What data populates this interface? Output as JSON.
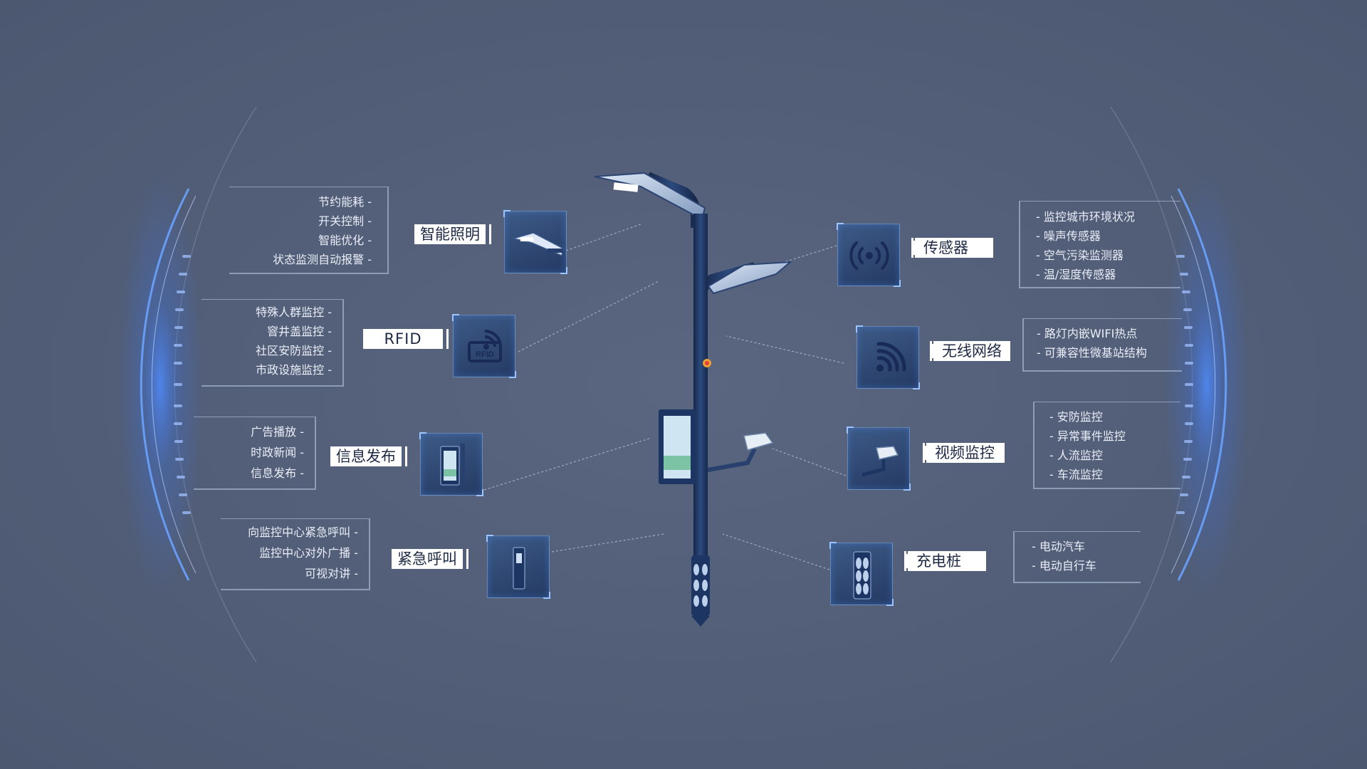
{
  "modules": {
    "lighting": {
      "label": "智能照明",
      "items": [
        "节约能耗",
        "开关控制",
        "智能优化",
        "状态监测自动报警"
      ]
    },
    "rfid": {
      "label": "RFID",
      "items": [
        "特殊人群监控",
        "窨井盖监控",
        "社区安防监控",
        "市政设施监控"
      ]
    },
    "info": {
      "label": "信息发布",
      "items": [
        "广告播放",
        "时政新闻",
        "信息发布"
      ]
    },
    "emergency": {
      "label": "紧急呼叫",
      "items": [
        "向监控中心紧急呼叫",
        "监控中心对外广播",
        "可视对讲"
      ]
    },
    "sensor": {
      "label": "传感器",
      "items": [
        "监控城市环境状况",
        "噪声传感器",
        "空气污染监测器",
        "温/湿度传感器"
      ]
    },
    "wifi": {
      "label": "无线网络",
      "items": [
        "路灯内嵌WIFI热点",
        "可兼容性微基站结构"
      ]
    },
    "video": {
      "label": "视频监控",
      "items": [
        "安防监控",
        "异常事件监控",
        "人流监控",
        "车流监控"
      ]
    },
    "charging": {
      "label": "充电桩",
      "items": [
        "电动汽车",
        "电动自行车"
      ]
    }
  },
  "icons": {
    "lighting": "street-lamp-head",
    "rfid": "rfid-tag",
    "info": "display-screen",
    "emergency": "call-pillar",
    "sensor": "signal-broadcast",
    "wifi": "wifi-signal",
    "video": "cctv-camera",
    "charging": "charging-post"
  },
  "rfid_icon_text": "RFID",
  "colors": {
    "background": "#525e77",
    "pole": "#1e3560",
    "accent_glow": "#3b7bff",
    "label_bg": "#ffffff",
    "label_text": "#1e2a44",
    "list_text": "#e9eef8"
  }
}
